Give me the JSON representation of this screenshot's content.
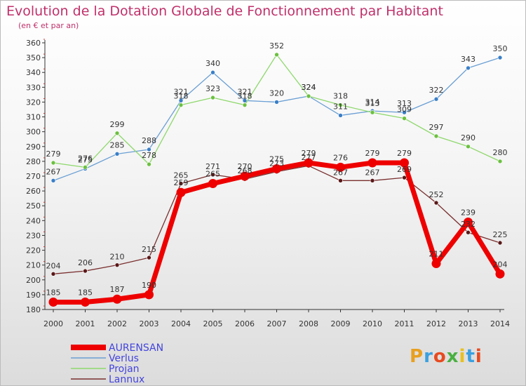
{
  "title": "Evolution de la Dotation Globale de Fonctionnement par Habitant",
  "subtitle": "(en € et par an)",
  "brand": "Proxiti",
  "chart_data": {
    "type": "line",
    "x": [
      "2000",
      "2001",
      "2002",
      "2003",
      "2004",
      "2005",
      "2006",
      "2007",
      "2008",
      "2009",
      "2010",
      "2011",
      "2012",
      "2013",
      "2014"
    ],
    "ylim": [
      180,
      360
    ],
    "yticks": [
      180,
      190,
      200,
      210,
      220,
      230,
      240,
      250,
      260,
      270,
      280,
      290,
      300,
      310,
      320,
      330,
      340,
      350,
      360
    ],
    "grid": false,
    "legend_position": "bottom-left",
    "series": [
      {
        "name": "Verlus",
        "color": "#6a9fd4",
        "marker": "#3a7fc8",
        "width": 1.3,
        "values": [
          267,
          275,
          285,
          288,
          321,
          340,
          321,
          320,
          324,
          311,
          314,
          313,
          322,
          343,
          350
        ]
      },
      {
        "name": "Projan",
        "color": "#8ed86c",
        "marker": "#6cc040",
        "width": 1.3,
        "values": [
          279,
          276,
          299,
          278,
          318,
          323,
          318,
          352,
          324,
          318,
          313,
          309,
          297,
          290,
          280
        ]
      },
      {
        "name": "Lannux",
        "color": "#7a2f2f",
        "marker": "#5a1818",
        "width": 1.3,
        "values": [
          204,
          206,
          210,
          215,
          265,
          271,
          268,
          273,
          277,
          267,
          267,
          269,
          252,
          232,
          225
        ]
      },
      {
        "name": "AURENSAN",
        "color": "#ee0000",
        "marker": "#ee0000",
        "width": 7,
        "values": [
          185,
          185,
          187,
          190,
          259,
          265,
          270,
          275,
          279,
          276,
          279,
          279,
          211,
          239,
          204
        ]
      }
    ],
    "labels": {
      "Verlus": [
        "267",
        "275",
        "285",
        "288",
        "321",
        "340",
        "321",
        "320",
        "324",
        "311",
        "314",
        "313",
        "322",
        "343",
        "350"
      ],
      "Projan": [
        "279",
        "276",
        "299",
        "278",
        "318",
        "323",
        "318",
        "352",
        "324",
        "318",
        "313",
        "309",
        "297",
        "290",
        "280"
      ],
      "Lannux": [
        "204",
        "206",
        "210",
        "215",
        "265",
        "271",
        "268",
        "273",
        "277",
        "267",
        "267",
        "269",
        "252",
        "232",
        "225"
      ],
      "AURENSAN": [
        "185",
        "185",
        "187",
        "190",
        "259",
        "265",
        "270",
        "275",
        "279",
        "276",
        "279",
        "279",
        "211",
        "239",
        "204"
      ]
    },
    "legend": [
      {
        "name": "AURENSAN",
        "color": "#ee0000",
        "text_color": "#4444dd",
        "thick": true
      },
      {
        "name": "Verlus",
        "color": "#6a9fd4",
        "text_color": "#4444dd",
        "thick": false
      },
      {
        "name": "Projan",
        "color": "#8ed86c",
        "text_color": "#4444dd",
        "thick": false
      },
      {
        "name": "Lannux",
        "color": "#7a2f2f",
        "text_color": "#4444dd",
        "thick": false
      }
    ]
  }
}
